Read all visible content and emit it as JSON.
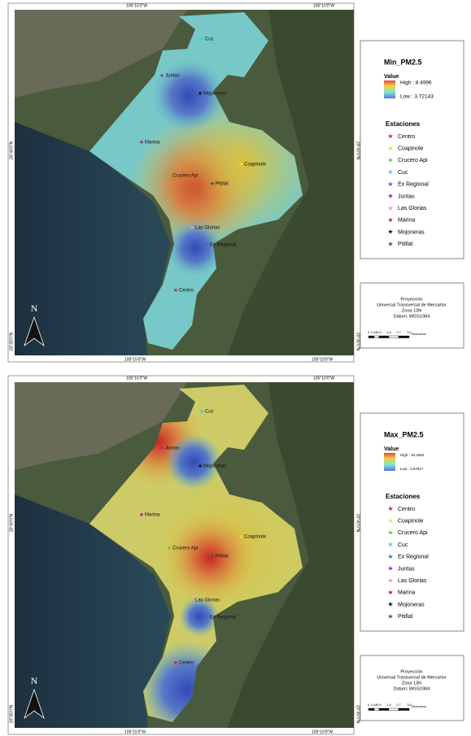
{
  "panels": [
    {
      "title": "Min_PM2.5",
      "value_heading": "Value",
      "high": "High : 8.4996",
      "low": "Low : 3.72143"
    },
    {
      "title": "Max_PM2.5",
      "value_heading": "Value",
      "high": "High : 10.3462",
      "low": "Low : 3.57817"
    }
  ],
  "graticule": {
    "lon": [
      "105°15'0\"W",
      "105°10'0\"W"
    ],
    "lat": [
      "20°40'0\"N",
      "20°35'0\"N"
    ]
  },
  "legend_heading": "Estaciones",
  "stations": [
    {
      "name": "Centro",
      "color": "#e31a1c"
    },
    {
      "name": "Coapinole",
      "color": "#f0e020"
    },
    {
      "name": "Crucero Api",
      "color": "#4cd43c"
    },
    {
      "name": "Cuc",
      "color": "#38d6c8"
    },
    {
      "name": "Ex Regional",
      "color": "#2f6fd0"
    },
    {
      "name": "Juntas",
      "color": "#9b1fc0"
    },
    {
      "name": "Las Glorias",
      "color": "#f58ad8"
    },
    {
      "name": "Marina",
      "color": "#b0186e"
    },
    {
      "name": "Mojoneras",
      "color": "#111111"
    },
    {
      "name": "Pitillal",
      "color": "#1f6b22"
    }
  ],
  "north": "N",
  "projection": {
    "lines": [
      "Proyección",
      "Universal Transversal de Mercartor",
      "Zona 13N",
      "Datum: WGS1984"
    ]
  },
  "scale": {
    "labels": [
      "0",
      "0.45",
      "0.9",
      "1.8",
      "2.7",
      "3.6"
    ],
    "unit": "Kilómetros"
  }
}
